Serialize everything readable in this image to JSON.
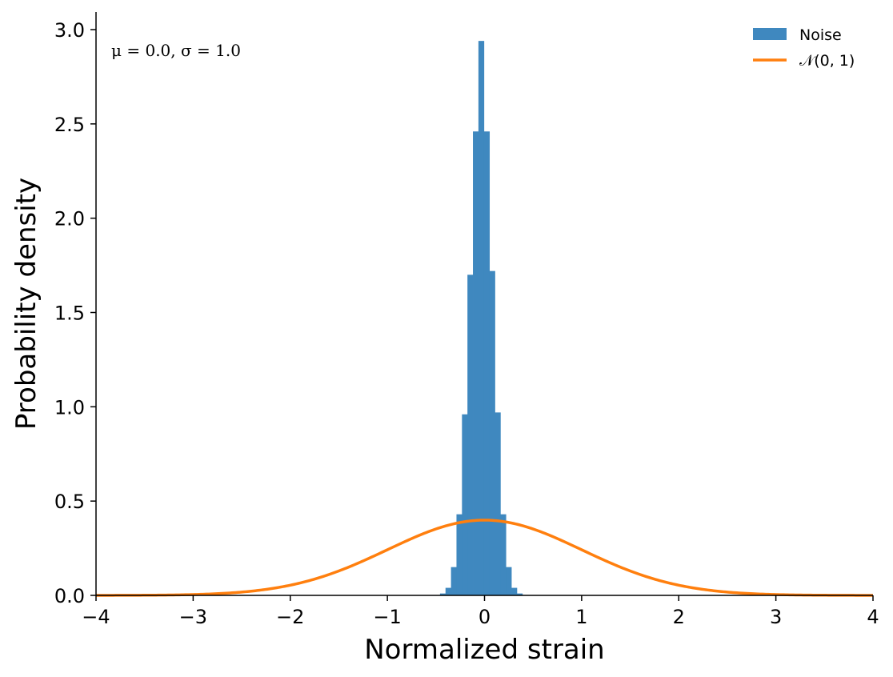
{
  "chart_data": {
    "type": "bar",
    "xlabel": "Normalized strain",
    "ylabel": "Probability density",
    "xlim": [
      -4,
      4
    ],
    "ylim": [
      0,
      3.1
    ],
    "x_ticks": [
      -4,
      -3,
      -2,
      -1,
      0,
      1,
      2,
      3,
      4
    ],
    "x_tick_labels": [
      "−4",
      "−3",
      "−2",
      "−1",
      "0",
      "1",
      "2",
      "3",
      "4"
    ],
    "y_ticks": [
      0,
      0.5,
      1.0,
      1.5,
      2.0,
      2.5,
      3.0
    ],
    "y_tick_labels": [
      "0.0",
      "0.5",
      "1.0",
      "1.5",
      "2.0",
      "2.5",
      "3.0"
    ],
    "grid": false,
    "legend_position": "top-right",
    "annotation": "μ = 0.0,  σ = 1.0",
    "histogram": {
      "name": "Noise",
      "color": "#3f88bf",
      "bin_edges": [
        -0.4581,
        -0.4016,
        -0.3451,
        -0.2886,
        -0.2321,
        -0.1757,
        -0.1192,
        -0.0627,
        -0.0062,
        0.0503,
        0.1068,
        0.1633,
        0.2198,
        0.2763,
        0.3328,
        0.3893,
        0.4458
      ],
      "values": [
        0.01,
        0.04,
        0.15,
        0.43,
        0.96,
        1.7,
        2.46,
        2.94,
        2.46,
        1.72,
        0.97,
        0.43,
        0.15,
        0.04,
        0.01,
        0.0
      ]
    },
    "curve": {
      "name": "𝒩(0, 1)",
      "color": "#ff7f0e",
      "function": "standard normal pdf",
      "x_range": [
        -4,
        4
      ]
    }
  }
}
